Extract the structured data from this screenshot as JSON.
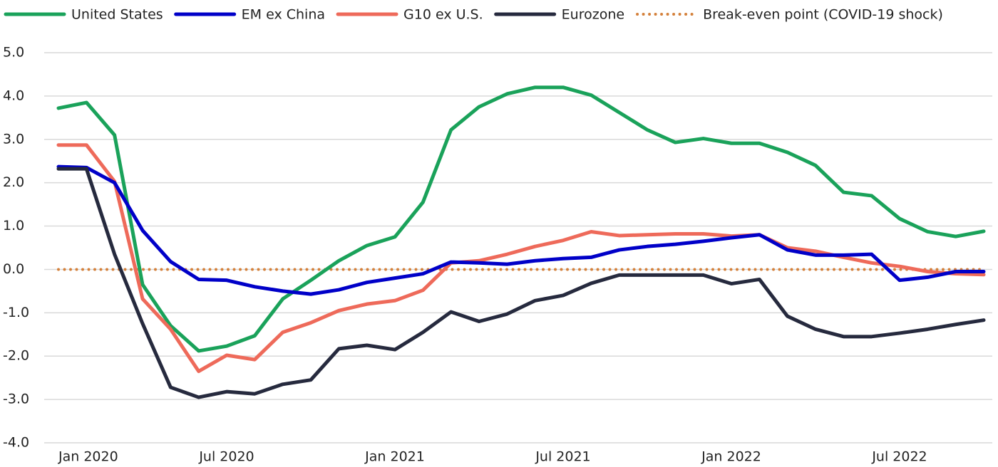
{
  "chart_data": {
    "type": "line",
    "categories": [
      "Jan 2020",
      null,
      null,
      null,
      null,
      null,
      "Jul 2020",
      null,
      null,
      null,
      null,
      null,
      "Jan 2021",
      null,
      null,
      null,
      null,
      null,
      "Jul 2021",
      null,
      null,
      null,
      null,
      null,
      "Jan 2022",
      null,
      null,
      null,
      null,
      null,
      "Jul 2022",
      null,
      null,
      null
    ],
    "series": [
      {
        "name": "United States",
        "color": "#1aa25a",
        "values": [
          3.72,
          3.85,
          3.1,
          -0.35,
          -1.3,
          -1.88,
          -1.77,
          -1.53,
          -0.68,
          -0.25,
          0.2,
          0.55,
          0.75,
          1.55,
          3.22,
          3.75,
          4.05,
          4.2,
          4.2,
          4.02,
          3.62,
          3.22,
          2.93,
          3.02,
          2.91,
          2.91,
          2.7,
          2.4,
          1.78,
          1.7,
          1.17,
          0.87,
          0.76,
          0.88
        ]
      },
      {
        "name": "EM ex China",
        "color": "#0000c8",
        "values": [
          2.37,
          2.35,
          2.0,
          0.9,
          0.18,
          -0.23,
          -0.25,
          -0.4,
          -0.5,
          -0.57,
          -0.47,
          -0.3,
          -0.2,
          -0.1,
          0.17,
          0.15,
          0.12,
          0.2,
          0.25,
          0.28,
          0.45,
          0.53,
          0.58,
          0.65,
          0.73,
          0.8,
          0.45,
          0.33,
          0.33,
          0.35,
          -0.25,
          -0.18,
          -0.05,
          -0.05
        ]
      },
      {
        "name": "G10 ex U.S.",
        "color": "#ee6a5a",
        "values": [
          2.87,
          2.87,
          2.03,
          -0.68,
          -1.38,
          -2.35,
          -1.98,
          -2.08,
          -1.45,
          -1.23,
          -0.95,
          -0.8,
          -0.72,
          -0.48,
          0.15,
          0.2,
          0.35,
          0.53,
          0.67,
          0.87,
          0.78,
          0.8,
          0.82,
          0.82,
          0.77,
          0.8,
          0.5,
          0.42,
          0.28,
          0.15,
          0.07,
          -0.05,
          -0.1,
          -0.12
        ]
      },
      {
        "name": "Eurozone",
        "color": "#262a3e",
        "values": [
          2.32,
          2.32,
          0.35,
          -1.25,
          -2.72,
          -2.95,
          -2.82,
          -2.87,
          -2.65,
          -2.55,
          -1.83,
          -1.75,
          -1.85,
          -1.45,
          -0.98,
          -1.2,
          -1.03,
          -0.72,
          -0.6,
          -0.32,
          -0.13,
          -0.13,
          -0.13,
          -0.13,
          -0.33,
          -0.23,
          -1.08,
          -1.38,
          -1.55,
          -1.55,
          -1.47,
          -1.38,
          -1.27,
          -1.17
        ]
      },
      {
        "name": "Break-even point (COVID-19 shock)",
        "color": "#d4803a",
        "dash": "dotted",
        "values": [
          0,
          0,
          0,
          0,
          0,
          0,
          0,
          0,
          0,
          0,
          0,
          0,
          0,
          0,
          0,
          0,
          0,
          0,
          0,
          0,
          0,
          0,
          0,
          0,
          0,
          0,
          0,
          0,
          0,
          0,
          0,
          0,
          0,
          0
        ]
      }
    ],
    "ylim": [
      -4,
      5
    ],
    "yticks": [
      {
        "value": -4,
        "label": "-4.0"
      },
      {
        "value": -3,
        "label": "-3.0"
      },
      {
        "value": -2,
        "label": "-2.0"
      },
      {
        "value": -1,
        "label": "-1.0"
      },
      {
        "value": 0,
        "label": "0.0"
      },
      {
        "value": 1,
        "label": "1.0"
      },
      {
        "value": 2,
        "label": "2.0"
      },
      {
        "value": 3,
        "label": "3.0"
      },
      {
        "value": 4,
        "label": "4.0"
      },
      {
        "value": 5,
        "label": "5.0"
      }
    ],
    "grid": true,
    "legend": "top"
  }
}
